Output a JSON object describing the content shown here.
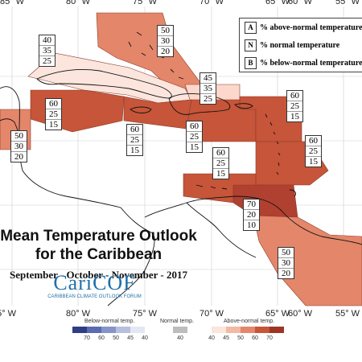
{
  "map": {
    "longitude_labels": [
      "85° W",
      "80° W",
      "75° W",
      "70° W",
      "65° W",
      "60° W",
      "55° W"
    ],
    "regions": [
      {
        "name": "Bahamas",
        "above": "50",
        "normal": "30",
        "below": "20",
        "color": "#e4866a"
      },
      {
        "name": "Cuba",
        "above": "40",
        "normal": "35",
        "below": "25",
        "color": "#fbe5dd"
      },
      {
        "name": "Turks and Caicos",
        "above": "45",
        "normal": "35",
        "below": "25",
        "color": "#fbd8cb"
      },
      {
        "name": "Western Caribbean",
        "above": "60",
        "normal": "25",
        "below": "15",
        "color": "#c65539"
      },
      {
        "name": "Belize",
        "above": "50",
        "normal": "30",
        "below": "20",
        "color": "#e4866a"
      },
      {
        "name": "Jamaica",
        "above": "60",
        "normal": "25",
        "below": "15",
        "color": "#c65539"
      },
      {
        "name": "Hispaniola",
        "above": "60",
        "normal": "25",
        "below": "15",
        "color": "#c65539"
      },
      {
        "name": "Leeward Islands",
        "above": "60",
        "normal": "25",
        "below": "15",
        "color": "#c65539"
      },
      {
        "name": "Windward Islands",
        "above": "60",
        "normal": "25",
        "below": "15",
        "color": "#c65539"
      },
      {
        "name": "ABC Islands",
        "above": "60",
        "normal": "25",
        "below": "15",
        "color": "#c65539"
      },
      {
        "name": "Trinidad and Tobago",
        "above": "70",
        "normal": "20",
        "below": "10",
        "color": "#b04030"
      },
      {
        "name": "Guyanas",
        "above": "50",
        "normal": "30",
        "below": "20",
        "color": "#e4866a"
      }
    ]
  },
  "legend": {
    "items": [
      {
        "key": "A",
        "text": "% above-normal temperature"
      },
      {
        "key": "N",
        "text": "% normal temperature"
      },
      {
        "key": "B",
        "text": "% below-normal temperature"
      }
    ]
  },
  "title": {
    "line1": "Mean Temperature Outlook",
    "line2": "for the Caribbean",
    "season": "September - October - November - 2017"
  },
  "logo": {
    "wordmark": "CariCOF",
    "subtitle": "CARIBBEAN CLIMATE OUTLOOK FORUM"
  },
  "scale": {
    "below": {
      "label": "Below-normal temp.",
      "ticks": [
        "70",
        "60",
        "50",
        "45",
        "40"
      ],
      "colors": [
        "#2e3d86",
        "#5a6cb0",
        "#8794c8",
        "#b6bfdf",
        "#e3e7f3"
      ]
    },
    "normal": {
      "label": "Normal temp.",
      "ticks": [
        "40"
      ],
      "colors": [
        "#bdbdbd"
      ]
    },
    "above": {
      "label": "Above-normal temp.",
      "ticks": [
        "40",
        "45",
        "50",
        "60",
        "70"
      ],
      "colors": [
        "#fbe5dd",
        "#f2b9a4",
        "#e4866a",
        "#c65539",
        "#9e3424"
      ]
    }
  }
}
